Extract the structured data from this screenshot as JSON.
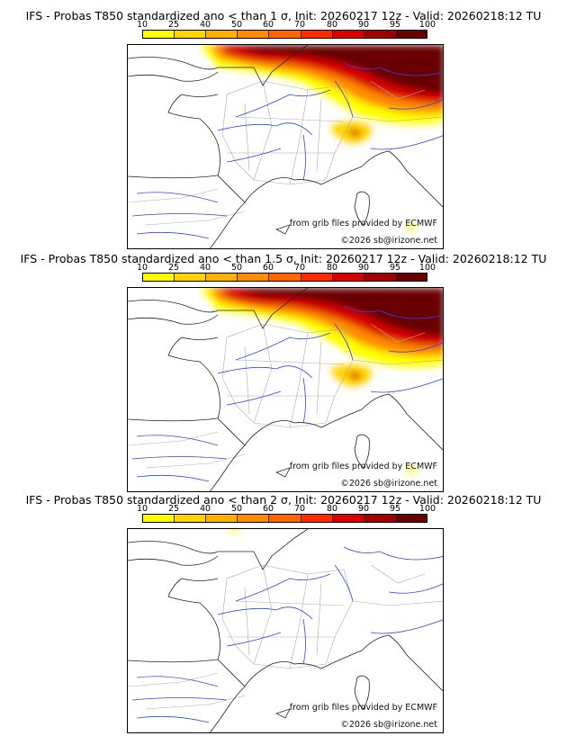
{
  "colorbar": {
    "ticks": [
      "10",
      "25",
      "40",
      "50",
      "60",
      "70",
      "80",
      "90",
      "95",
      "100"
    ],
    "colors": [
      "#ffff00",
      "#ffd400",
      "#ffb000",
      "#ff8c00",
      "#ff6600",
      "#ff2a00",
      "#d80000",
      "#a00000",
      "#680000"
    ]
  },
  "panels": [
    {
      "title": "IFS - Probas T850  standardized ano < than 1 σ, Init: 20260217 12z - Valid: 20260218:12 TU",
      "intensity": 1.0
    },
    {
      "title": "IFS - Probas T850  standardized ano < than 1.5 σ, Init: 20260217 12z - Valid: 20260218:12 TU",
      "intensity": 0.6
    },
    {
      "title": "IFS - Probas T850  standardized ano < than 2 σ, Init: 20260217 12z - Valid: 20260218:12 TU",
      "intensity": 0.1
    }
  ],
  "credits": {
    "source": "from grib files provided by ECMWF",
    "copyright": "©2026 sb@irizone.net"
  }
}
